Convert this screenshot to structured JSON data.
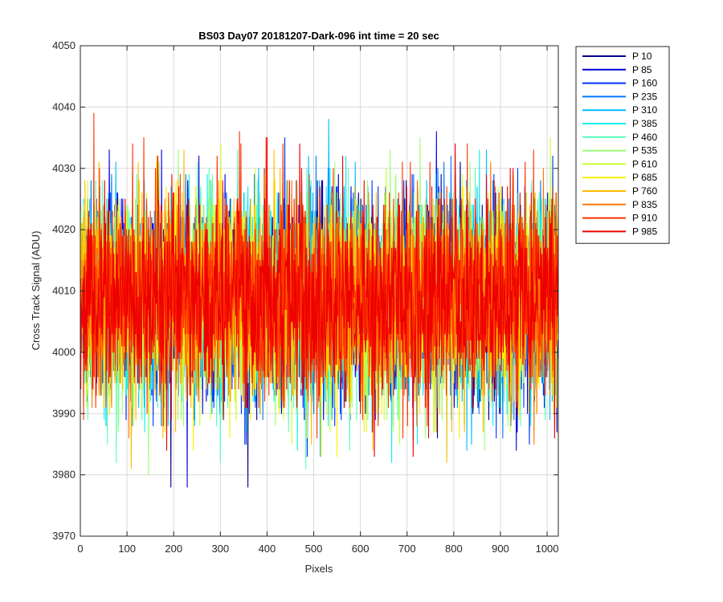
{
  "chart_data": {
    "type": "line",
    "title": "BS03 Day07 20181207-Dark-096 int time = 20 sec",
    "xlabel": "Pixels",
    "ylabel": "Cross Track Signal (ADU)",
    "xlim": [
      0,
      1024
    ],
    "ylim": [
      3970,
      4050
    ],
    "xticks": [
      0,
      100,
      200,
      300,
      400,
      500,
      600,
      700,
      800,
      900,
      1000
    ],
    "yticks": [
      3970,
      3980,
      3990,
      4000,
      4010,
      4020,
      4030,
      4040,
      4050
    ],
    "grid": true,
    "legend_position": "outside-top-right",
    "points_per_series": 1024,
    "noise_mean": 4009,
    "noise_std": 8,
    "series": [
      {
        "name": "P 10",
        "color": "#00008f"
      },
      {
        "name": "P 85",
        "color": "#0000d9"
      },
      {
        "name": "P 160",
        "color": "#0033ff"
      },
      {
        "name": "P 235",
        "color": "#0077ff"
      },
      {
        "name": "P 310",
        "color": "#00bbff"
      },
      {
        "name": "P 385",
        "color": "#11eeee"
      },
      {
        "name": "P 460",
        "color": "#55ffbb"
      },
      {
        "name": "P 535",
        "color": "#99ff77"
      },
      {
        "name": "P 610",
        "color": "#ccff33"
      },
      {
        "name": "P 685",
        "color": "#ffee00"
      },
      {
        "name": "P 760",
        "color": "#ffbb00"
      },
      {
        "name": "P 835",
        "color": "#ff7700"
      },
      {
        "name": "P 910",
        "color": "#ff3300"
      },
      {
        "name": "P 985",
        "color": "#ee0000"
      }
    ]
  }
}
